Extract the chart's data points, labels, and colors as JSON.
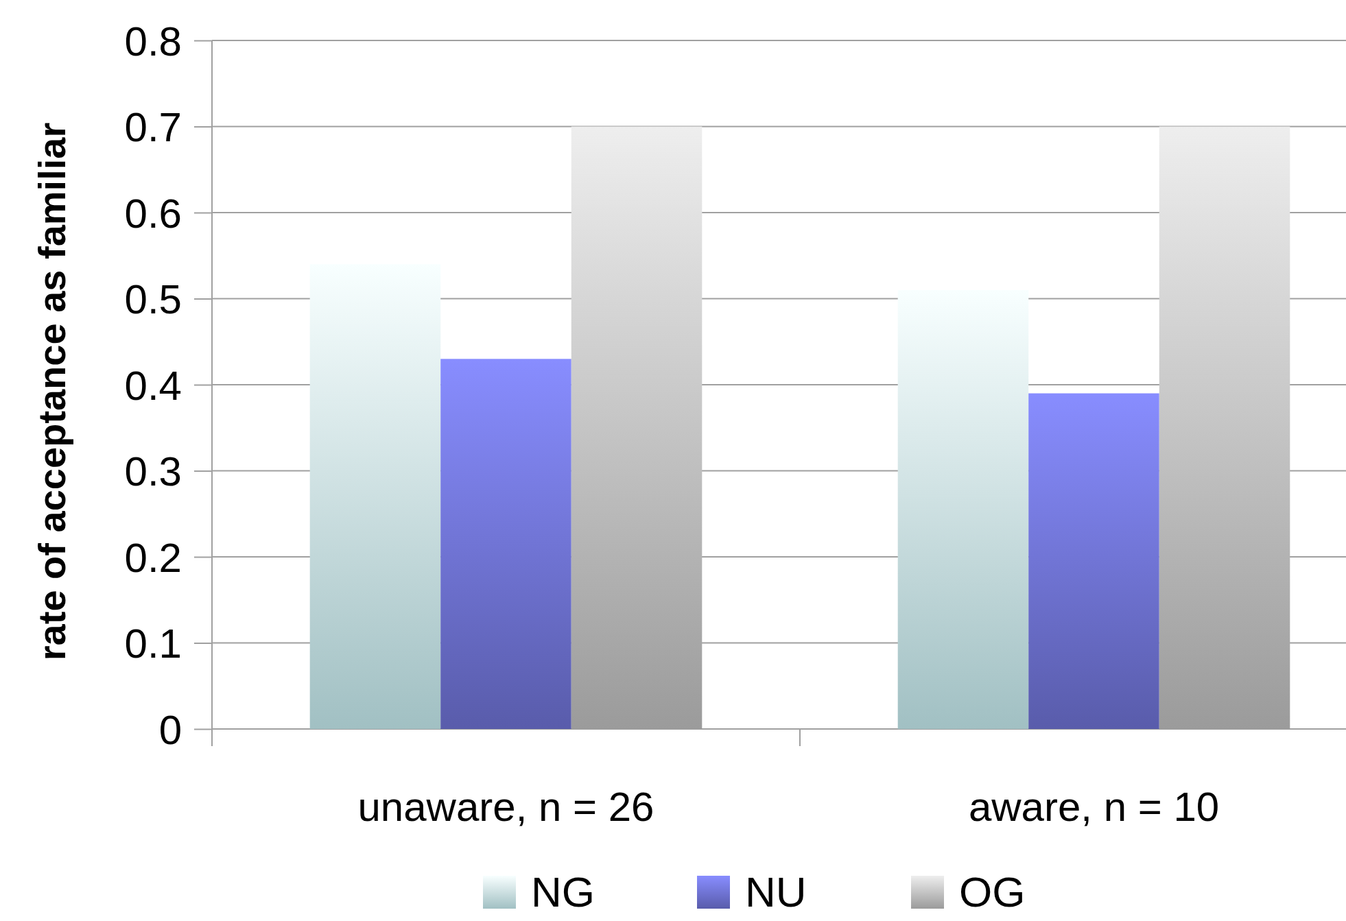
{
  "chart_data": {
    "type": "bar",
    "ylabel": "rate of acceptance as familiar",
    "categories": [
      "unaware, n = 26",
      "aware, n = 10"
    ],
    "series": [
      {
        "name": "NG",
        "color": "#c8eef2",
        "values": [
          0.54,
          0.51
        ]
      },
      {
        "name": "NU",
        "color": "#6e72d4",
        "values": [
          0.43,
          0.39
        ]
      },
      {
        "name": "OG",
        "color": "#c0c0c0",
        "values": [
          0.7,
          0.7
        ]
      }
    ],
    "ylim": [
      0,
      0.8
    ],
    "yticks": [
      0,
      0.1,
      0.2,
      0.3,
      0.4,
      0.5,
      0.6,
      0.7,
      0.8
    ],
    "grid": "y",
    "legend": "bottom"
  }
}
